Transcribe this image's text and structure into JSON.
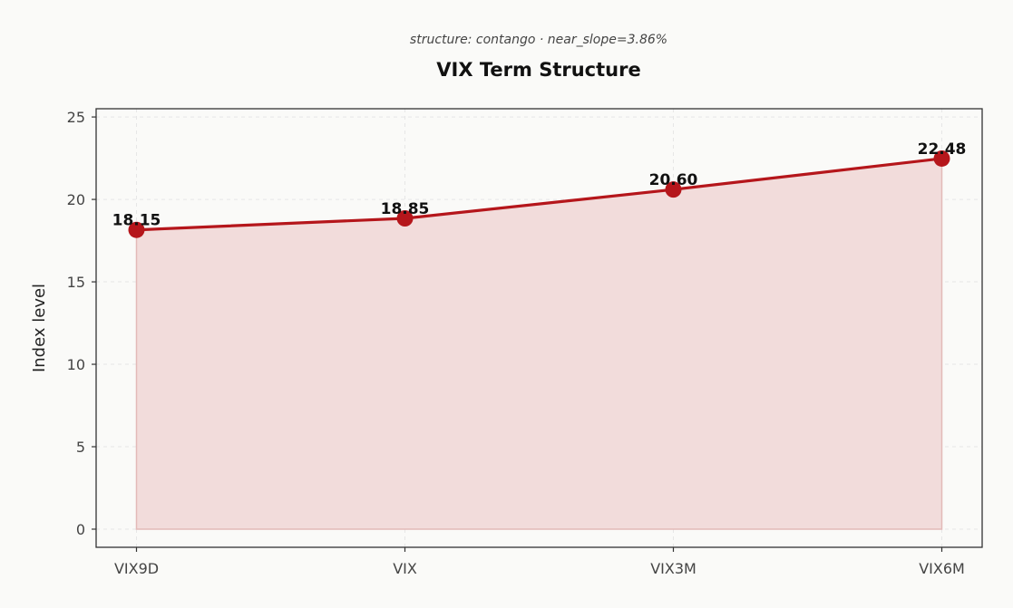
{
  "colors": {
    "background": "#fafaf8",
    "line": "#b5161b",
    "marker": "#b5161b",
    "area_fill": "#f2dcdb",
    "area_edge": "#e3b9b8",
    "axis": "#333333",
    "grid": "#e6e6e6"
  },
  "chart_data": {
    "type": "area",
    "subtitle": "structure: contango · near_slope=3.86%",
    "title": "VIX Term Structure",
    "xlabel": "",
    "ylabel": "Index level",
    "categories": [
      "VIX9D",
      "VIX",
      "VIX3M",
      "VIX6M"
    ],
    "values": [
      18.15,
      18.85,
      20.6,
      22.48
    ],
    "data_labels": [
      "18.15",
      "18.85",
      "20.60",
      "22.48"
    ],
    "ylim": [
      -1.1,
      25.5
    ],
    "yticks": [
      0,
      5,
      10,
      15,
      20,
      25
    ],
    "grid": true,
    "line_style": "solid",
    "markers": true,
    "legend": "none"
  }
}
